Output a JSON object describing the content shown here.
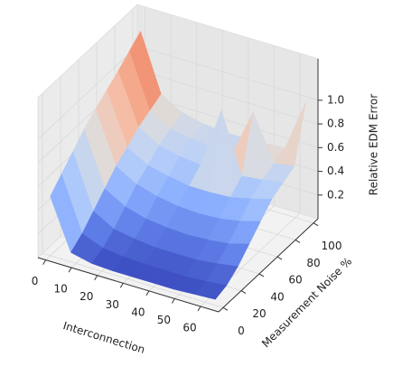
{
  "chart_data": {
    "type": "surface",
    "x_label": "Interconnection",
    "y_label": "Measurement Noise %",
    "z_label": "Relative EDM Error",
    "colormap": "coolwarm",
    "x": [
      0,
      8,
      16,
      24,
      32,
      40,
      48,
      56,
      64
    ],
    "y": [
      0,
      12.5,
      25,
      37.5,
      50,
      62.5,
      75,
      87.5,
      100
    ],
    "z": [
      [
        0.5,
        0.08,
        0.04,
        0.03,
        0.03,
        0.03,
        0.03,
        0.04,
        0.05
      ],
      [
        0.6,
        0.15,
        0.08,
        0.06,
        0.05,
        0.05,
        0.05,
        0.06,
        0.08
      ],
      [
        0.7,
        0.25,
        0.15,
        0.12,
        0.1,
        0.1,
        0.1,
        0.12,
        0.15
      ],
      [
        0.8,
        0.35,
        0.25,
        0.2,
        0.18,
        0.17,
        0.18,
        0.2,
        0.25
      ],
      [
        0.88,
        0.45,
        0.35,
        0.3,
        0.27,
        0.26,
        0.27,
        0.3,
        0.35
      ],
      [
        0.95,
        0.52,
        0.42,
        0.38,
        0.35,
        0.35,
        0.36,
        0.4,
        0.45
      ],
      [
        1.02,
        0.6,
        0.5,
        0.46,
        0.44,
        0.95,
        0.45,
        0.47,
        0.5
      ],
      [
        1.1,
        0.65,
        0.55,
        0.52,
        0.5,
        0.5,
        0.9,
        0.52,
        0.55
      ],
      [
        1.18,
        0.7,
        0.6,
        0.56,
        0.54,
        0.54,
        0.55,
        0.56,
        1.0
      ]
    ],
    "xlim": [
      -3,
      67
    ],
    "ylim": [
      -5,
      105
    ],
    "zlim": [
      0,
      1.35
    ],
    "xticks": [
      0,
      10,
      20,
      30,
      40,
      50,
      60
    ],
    "yticks": [
      0,
      20,
      40,
      60,
      80,
      100
    ],
    "zticks": [
      0.2,
      0.4,
      0.6,
      0.8,
      {
        "value": 1.0,
        "label": "1.0"
      }
    ],
    "grid": true
  }
}
